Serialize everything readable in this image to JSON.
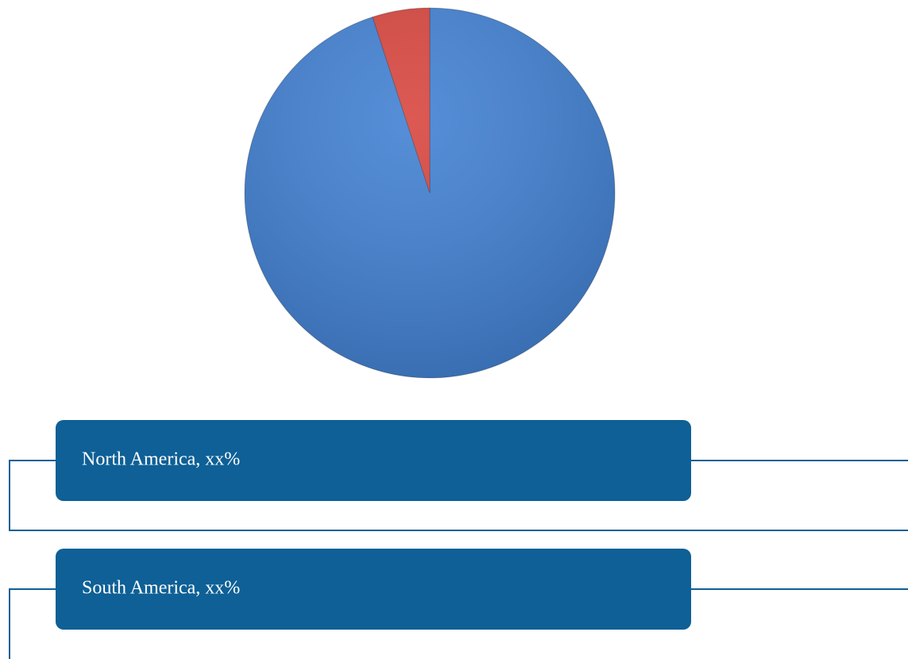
{
  "chart_data": {
    "type": "pie",
    "categories": [
      "North America, xx%",
      "South America, xx%"
    ],
    "values": [
      95,
      5
    ],
    "colors": [
      "#3f7fd2",
      "#d8433c"
    ],
    "legend_color": "#0e6096"
  }
}
